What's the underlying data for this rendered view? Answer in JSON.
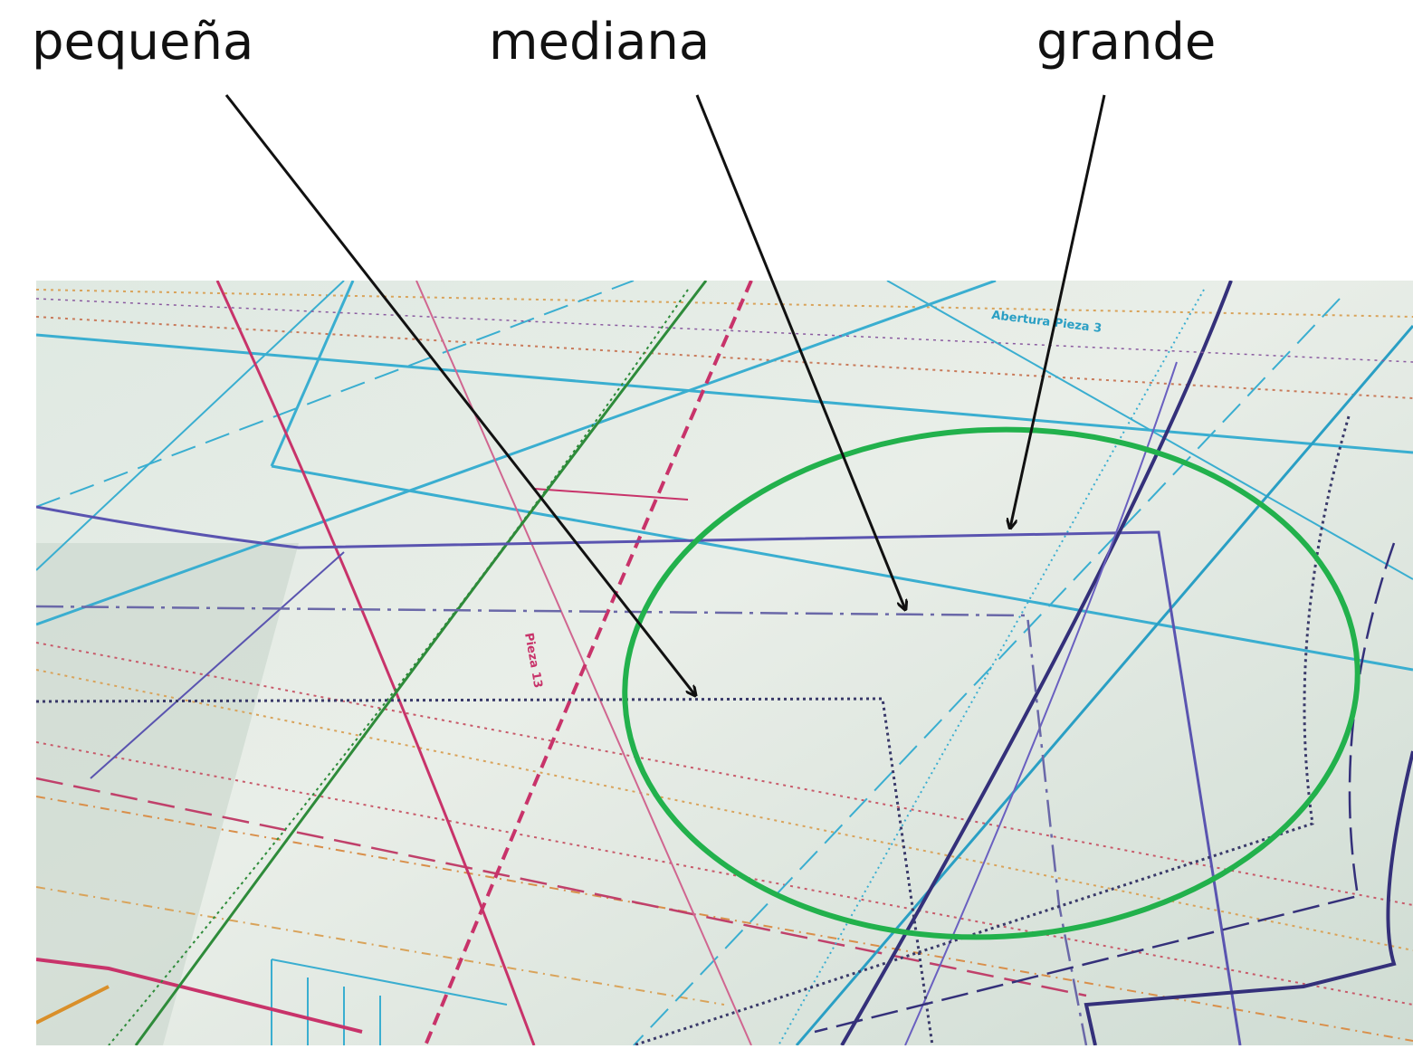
{
  "labels": [
    "pequeña",
    "mediana",
    "grande"
  ],
  "pattern_texts": [
    "Abertura Pieza 3",
    "Pieza 13"
  ]
}
